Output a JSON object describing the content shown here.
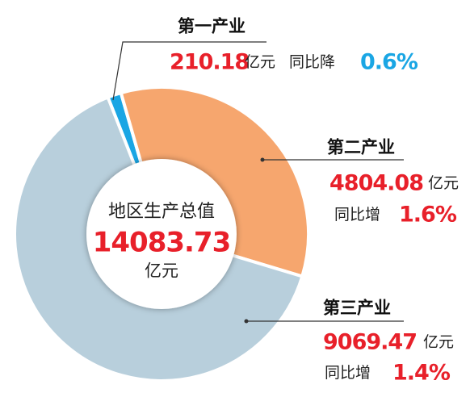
{
  "chart_data": {
    "type": "pie",
    "categories": [
      "第一产业",
      "第二产业",
      "第三产业"
    ],
    "values": [
      210.18,
      4804.08,
      9069.47
    ],
    "colors": [
      "#1aa6e4",
      "#f6a66e",
      "#b8cfdc"
    ],
    "unit": "亿元",
    "change_words": [
      "同比降",
      "同比增",
      "同比增"
    ],
    "changes": [
      0.6,
      1.6,
      1.4
    ],
    "change_labels": [
      "0.6%",
      "1.6%",
      "1.4%"
    ],
    "change_colors": [
      "#1aa6e4",
      "#e8202a",
      "#e8202a"
    ],
    "center_title": "地区生产总值",
    "total": 14083.73
  }
}
